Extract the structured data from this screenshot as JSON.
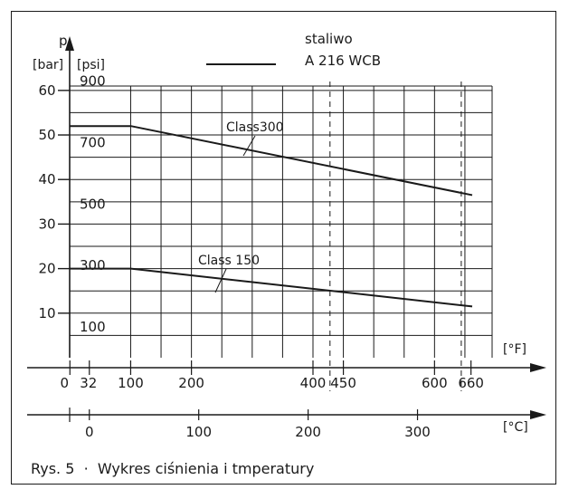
{
  "chart_data": {
    "type": "line",
    "title": "",
    "legend": {
      "label_line1": "staliwo",
      "label_line2": "A 216 WCB",
      "placement": "top"
    },
    "y_axis": {
      "symbol": "p",
      "unit_bar": "[bar]",
      "unit_psi": "[psi]",
      "bar_ticks": [
        10,
        20,
        30,
        40,
        50,
        60
      ],
      "psi_ticks": [
        100,
        300,
        500,
        700,
        900
      ],
      "ylim_bar": [
        0,
        62
      ]
    },
    "x_axis_f": {
      "unit": "[°F]",
      "ticks": [
        0,
        32,
        100,
        200,
        400,
        450,
        600,
        660
      ]
    },
    "x_axis_c": {
      "unit": "[°C]",
      "ticks": [
        0,
        100,
        200,
        300
      ]
    },
    "xlim_c": [
      -18,
      350
    ],
    "grid": true,
    "dashed_verticals_c": [
      220,
      340
    ],
    "series": [
      {
        "name": "Class300",
        "x_c": [
          -18,
          38,
          350
        ],
        "y_bar": [
          52,
          52,
          36.5
        ]
      },
      {
        "name": "Class 150",
        "x_c": [
          -18,
          38,
          350
        ],
        "y_bar": [
          20,
          20,
          11.5
        ]
      }
    ]
  },
  "caption": "Rys. 5  ·  Wykres ciśnienia i tmperatury"
}
